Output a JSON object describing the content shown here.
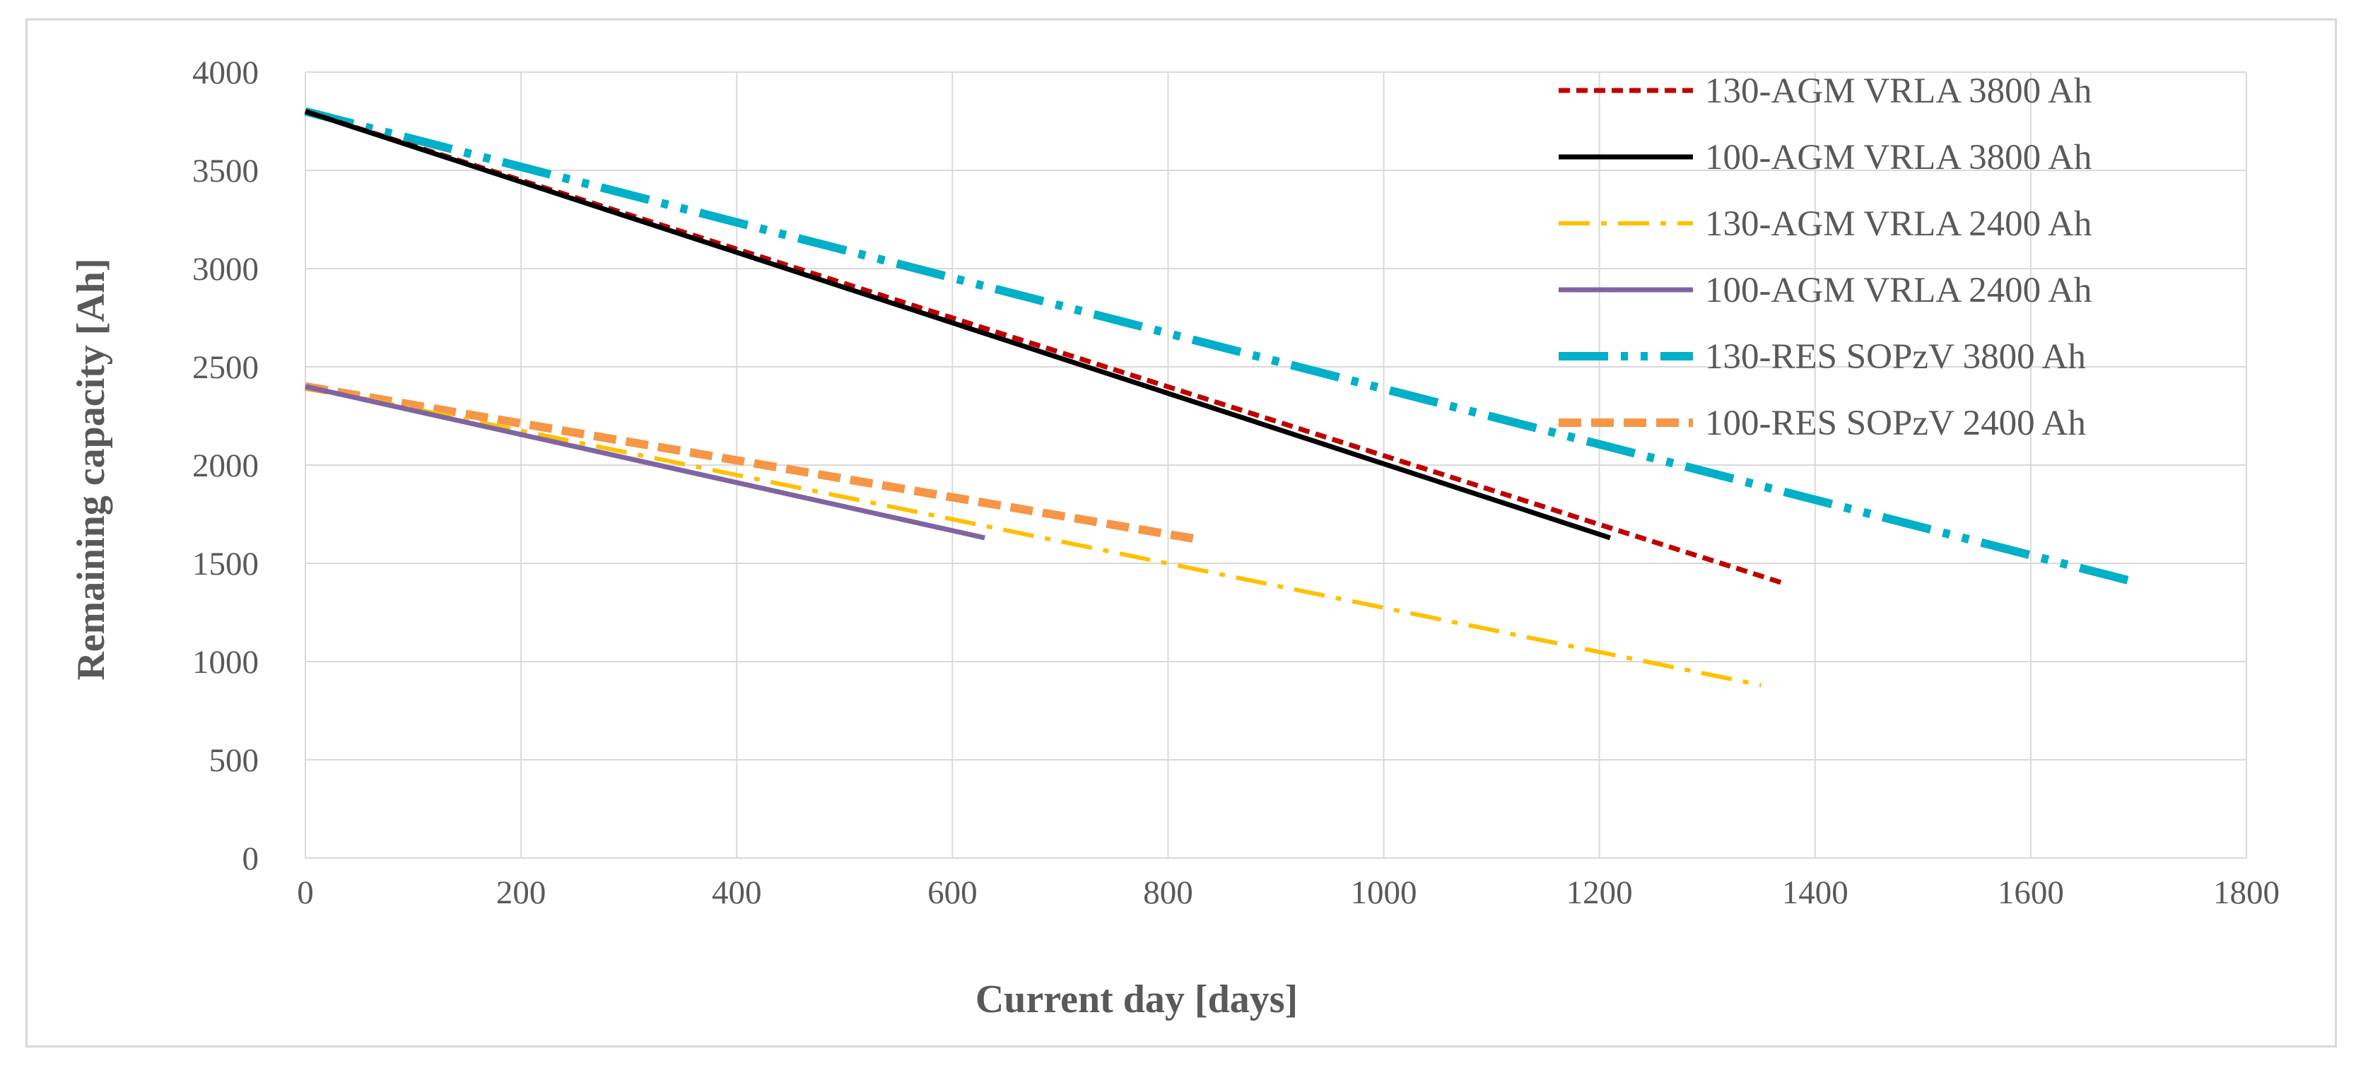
{
  "chart_data": {
    "type": "line",
    "title": "",
    "xlabel": "Current day [days]",
    "ylabel": "Remaining capacity [Ah]",
    "xlim": [
      0,
      1800
    ],
    "ylim": [
      0,
      4000
    ],
    "xticks": [
      0,
      200,
      400,
      600,
      800,
      1000,
      1200,
      1400,
      1600,
      1800
    ],
    "yticks": [
      0,
      500,
      1000,
      1500,
      2000,
      2500,
      3000,
      3500,
      4000
    ],
    "grid": true,
    "legend_position": "top-right",
    "series": [
      {
        "name": "130-AGM VRLA 3800 Ah",
        "color": "#c00000",
        "dash": "dashed",
        "x": [
          0,
          1370
        ],
        "y": [
          3800,
          1400
        ]
      },
      {
        "name": "100-AGM VRLA 3800 Ah",
        "color": "#000000",
        "dash": "solid",
        "x": [
          0,
          1210
        ],
        "y": [
          3800,
          1630
        ]
      },
      {
        "name": "130-AGM VRLA 2400 Ah",
        "color": "#ffc000",
        "dash": "dashdot",
        "x": [
          0,
          1350
        ],
        "y": [
          2400,
          880
        ]
      },
      {
        "name": "100-AGM VRLA 2400 Ah",
        "color": "#8064a2",
        "dash": "solid",
        "x": [
          0,
          630
        ],
        "y": [
          2400,
          1630
        ]
      },
      {
        "name": "130-RES SOPzV 3800 Ah",
        "color": "#00b0c8",
        "dash": "longdashdotdot",
        "x": [
          0,
          1700
        ],
        "y": [
          3800,
          1400
        ]
      },
      {
        "name": "100-RES SOPzV 2400 Ah",
        "color": "#f79646",
        "dash": "heavydash",
        "x": [
          0,
          830
        ],
        "y": [
          2400,
          1620
        ]
      }
    ]
  }
}
